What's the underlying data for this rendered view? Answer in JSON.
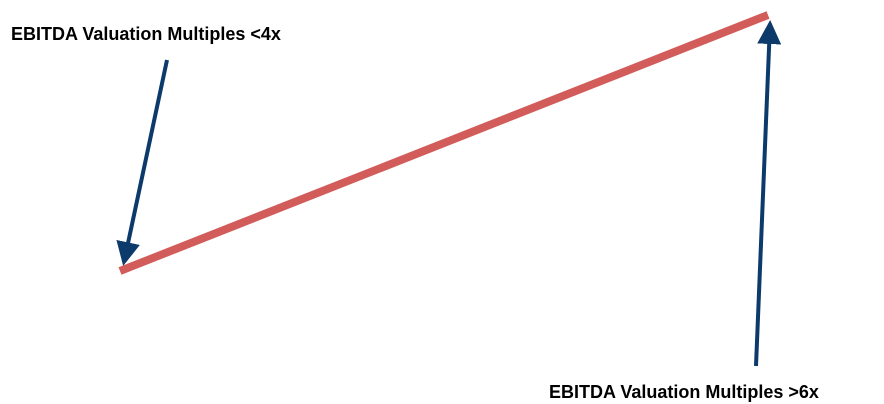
{
  "labels": {
    "low": "EBITDA Valuation Multiples <4x",
    "high": "EBITDA Valuation Multiples >6x"
  },
  "colors": {
    "trend_line": "#d25c5a",
    "arrow": "#0b3a6b",
    "text": "#000000",
    "background": "#ffffff"
  }
}
